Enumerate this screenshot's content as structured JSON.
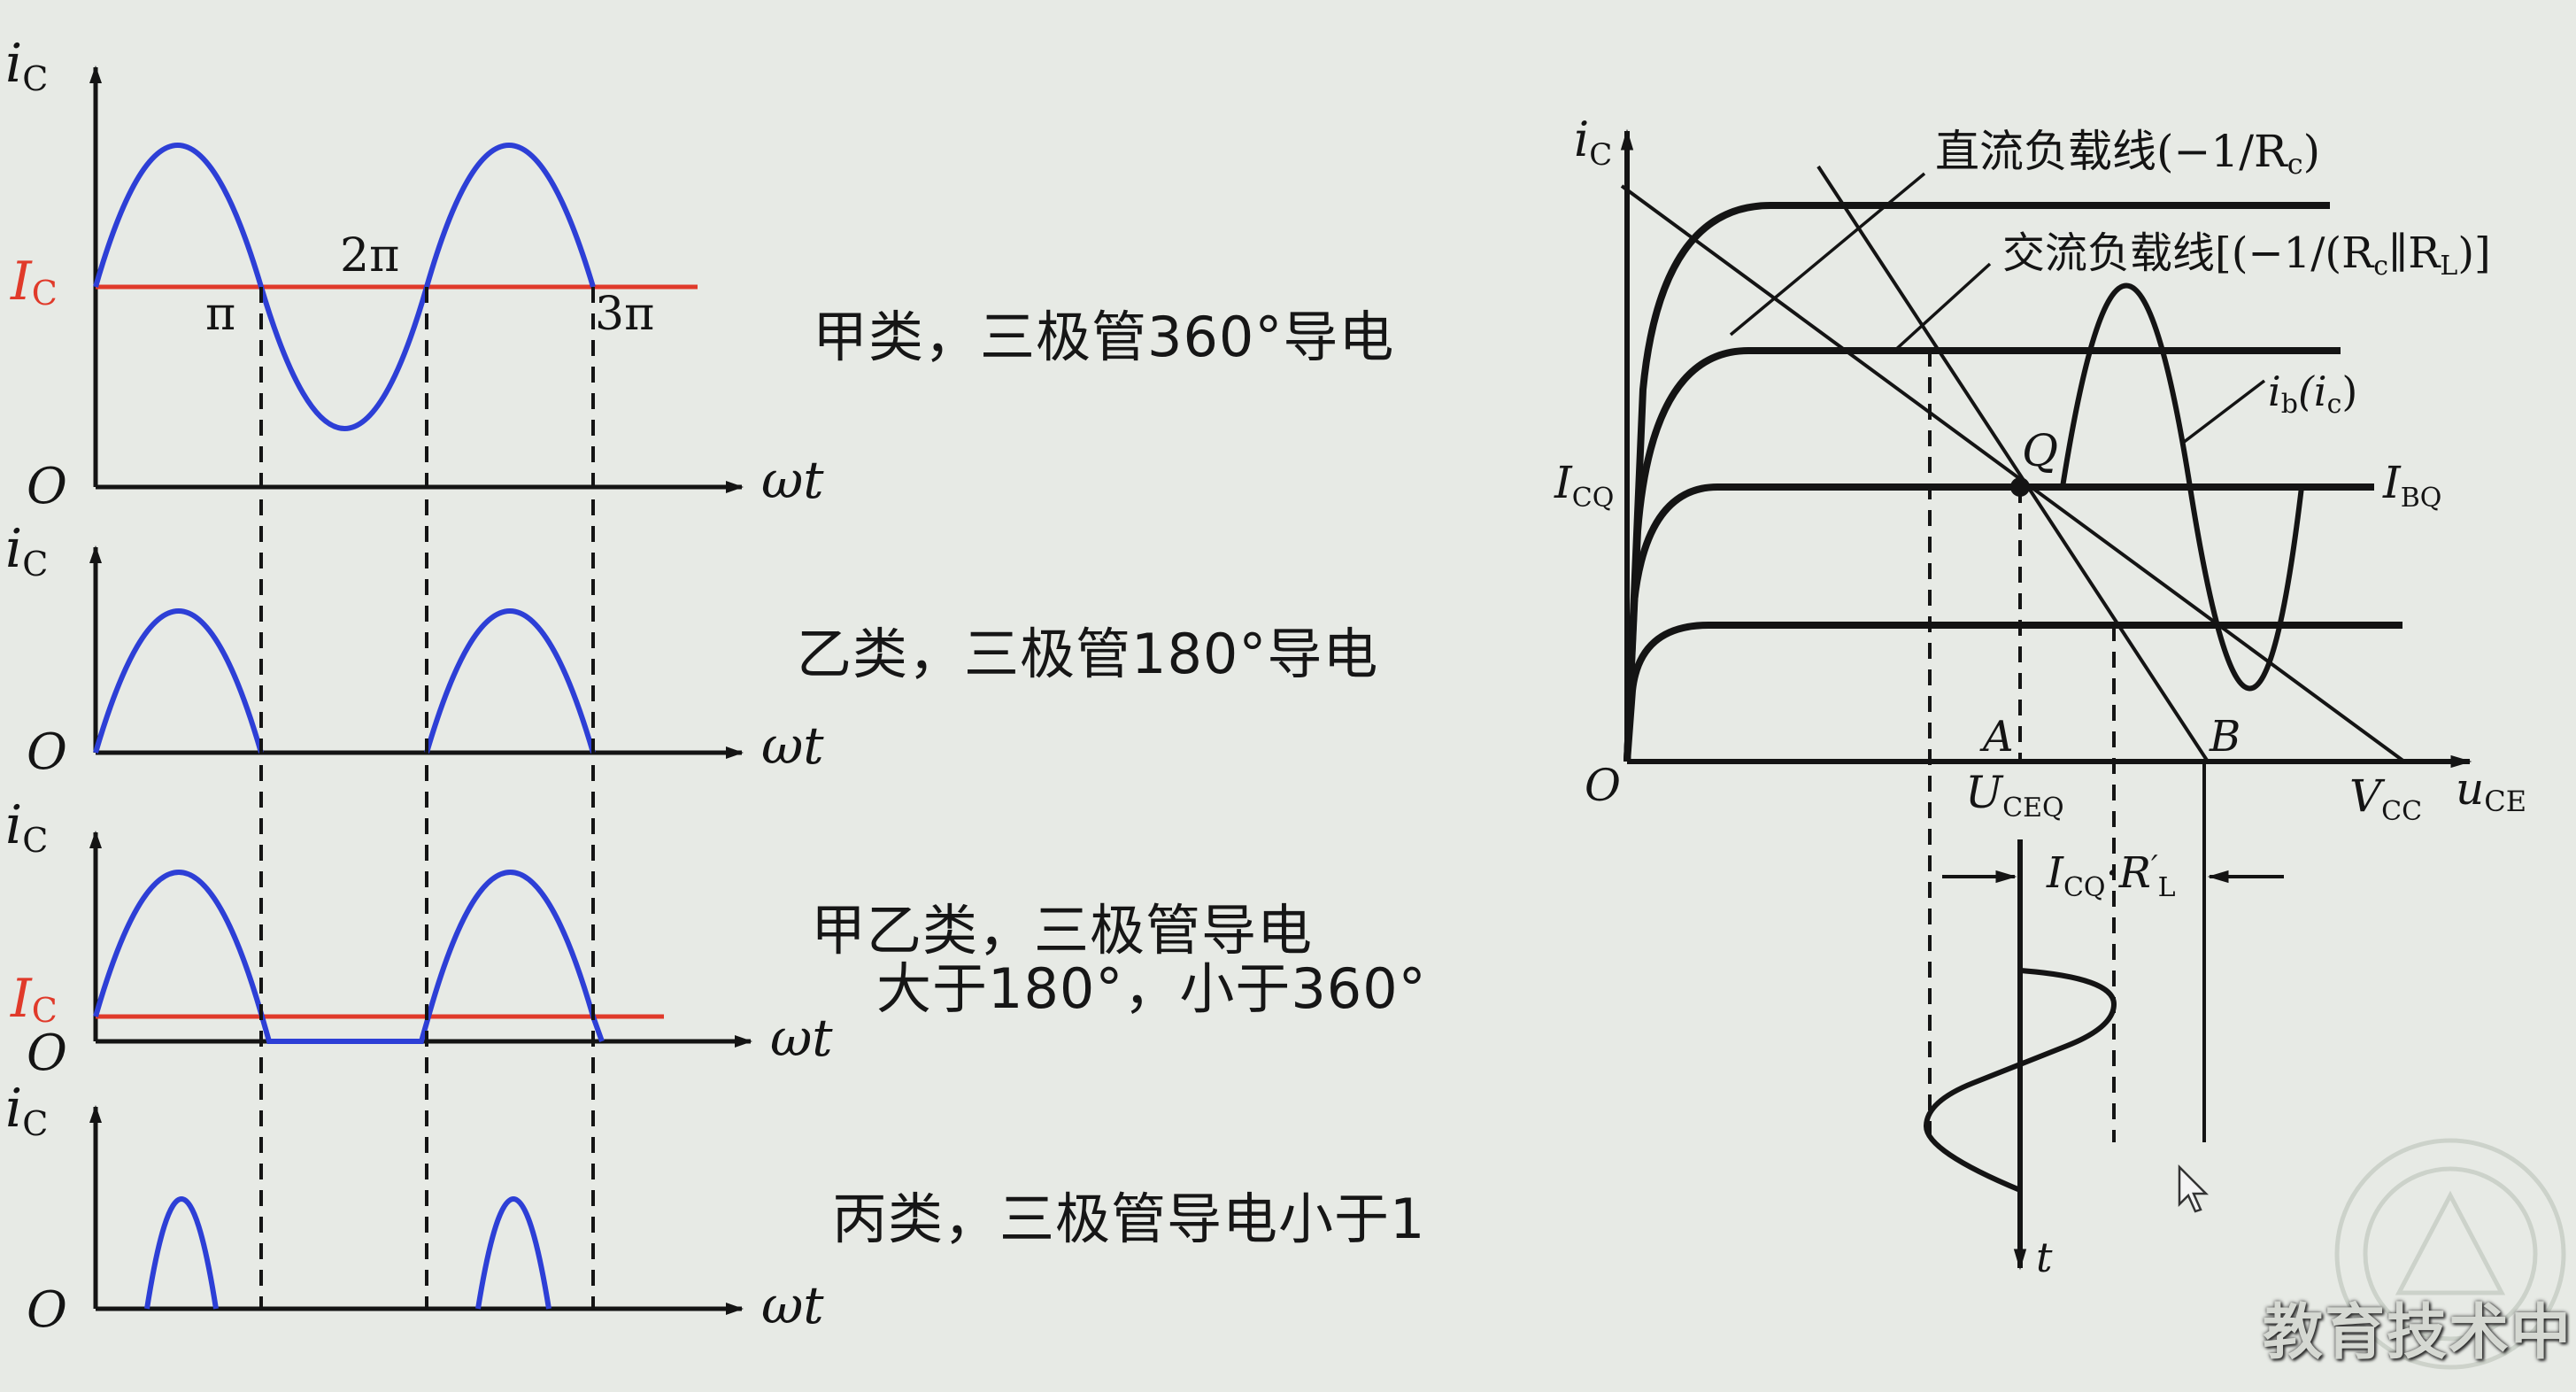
{
  "colors": {
    "background": "#e7eae5",
    "wave": "#2d3fd6",
    "ic_level": "#e03a2a",
    "ink": "#141414"
  },
  "left_panels": {
    "axis_y_label": "i",
    "axis_y_sub": "C",
    "axis_x_label": "ωt",
    "origin_label": "O",
    "ic_label": "I",
    "ic_sub": "C",
    "tick_pi": "π",
    "tick_2pi": "2π",
    "tick_3pi": "3π"
  },
  "captions": {
    "class_a": "甲类，三极管360°导电",
    "class_b": "乙类，三极管180°导电",
    "class_ab_line1": "甲乙类，三极管导电",
    "class_ab_line2": "大于180°，小于360°",
    "class_c": "丙类，三极管导电小于1"
  },
  "right_diagram": {
    "y_axis_label": "i",
    "y_axis_sub": "C",
    "x_axis_label": "u",
    "x_axis_sub": "CE",
    "origin_label": "O",
    "dc_load_line_label": "直流负载线(−1/R",
    "dc_load_line_sub": "c",
    "dc_load_line_close": ")",
    "ac_load_line_label": "交流负载线[(−1/(R",
    "ac_load_line_sub1": "c",
    "ac_load_line_mid": "∥R",
    "ac_load_line_sub2": "L",
    "ac_load_line_close": ")]",
    "ib_label": "i",
    "ib_sub": "b",
    "ib_paren": "(i",
    "ib_paren_sub": "c",
    "ib_close": ")",
    "q_label": "Q",
    "icq_label": "I",
    "icq_sub": "CQ",
    "ibq_label": "I",
    "ibq_sub": "BQ",
    "a_label": "A",
    "b_label": "B",
    "uceq_label": "U",
    "uceq_sub": "CEQ",
    "vcc_label": "V",
    "vcc_sub": "CC",
    "dim_label": "I",
    "dim_sub": "CQ",
    "dim_dot": "·R",
    "dim_prime": "′",
    "dim_sub2": "L",
    "t_label": "t"
  },
  "watermark": "教育技术中"
}
